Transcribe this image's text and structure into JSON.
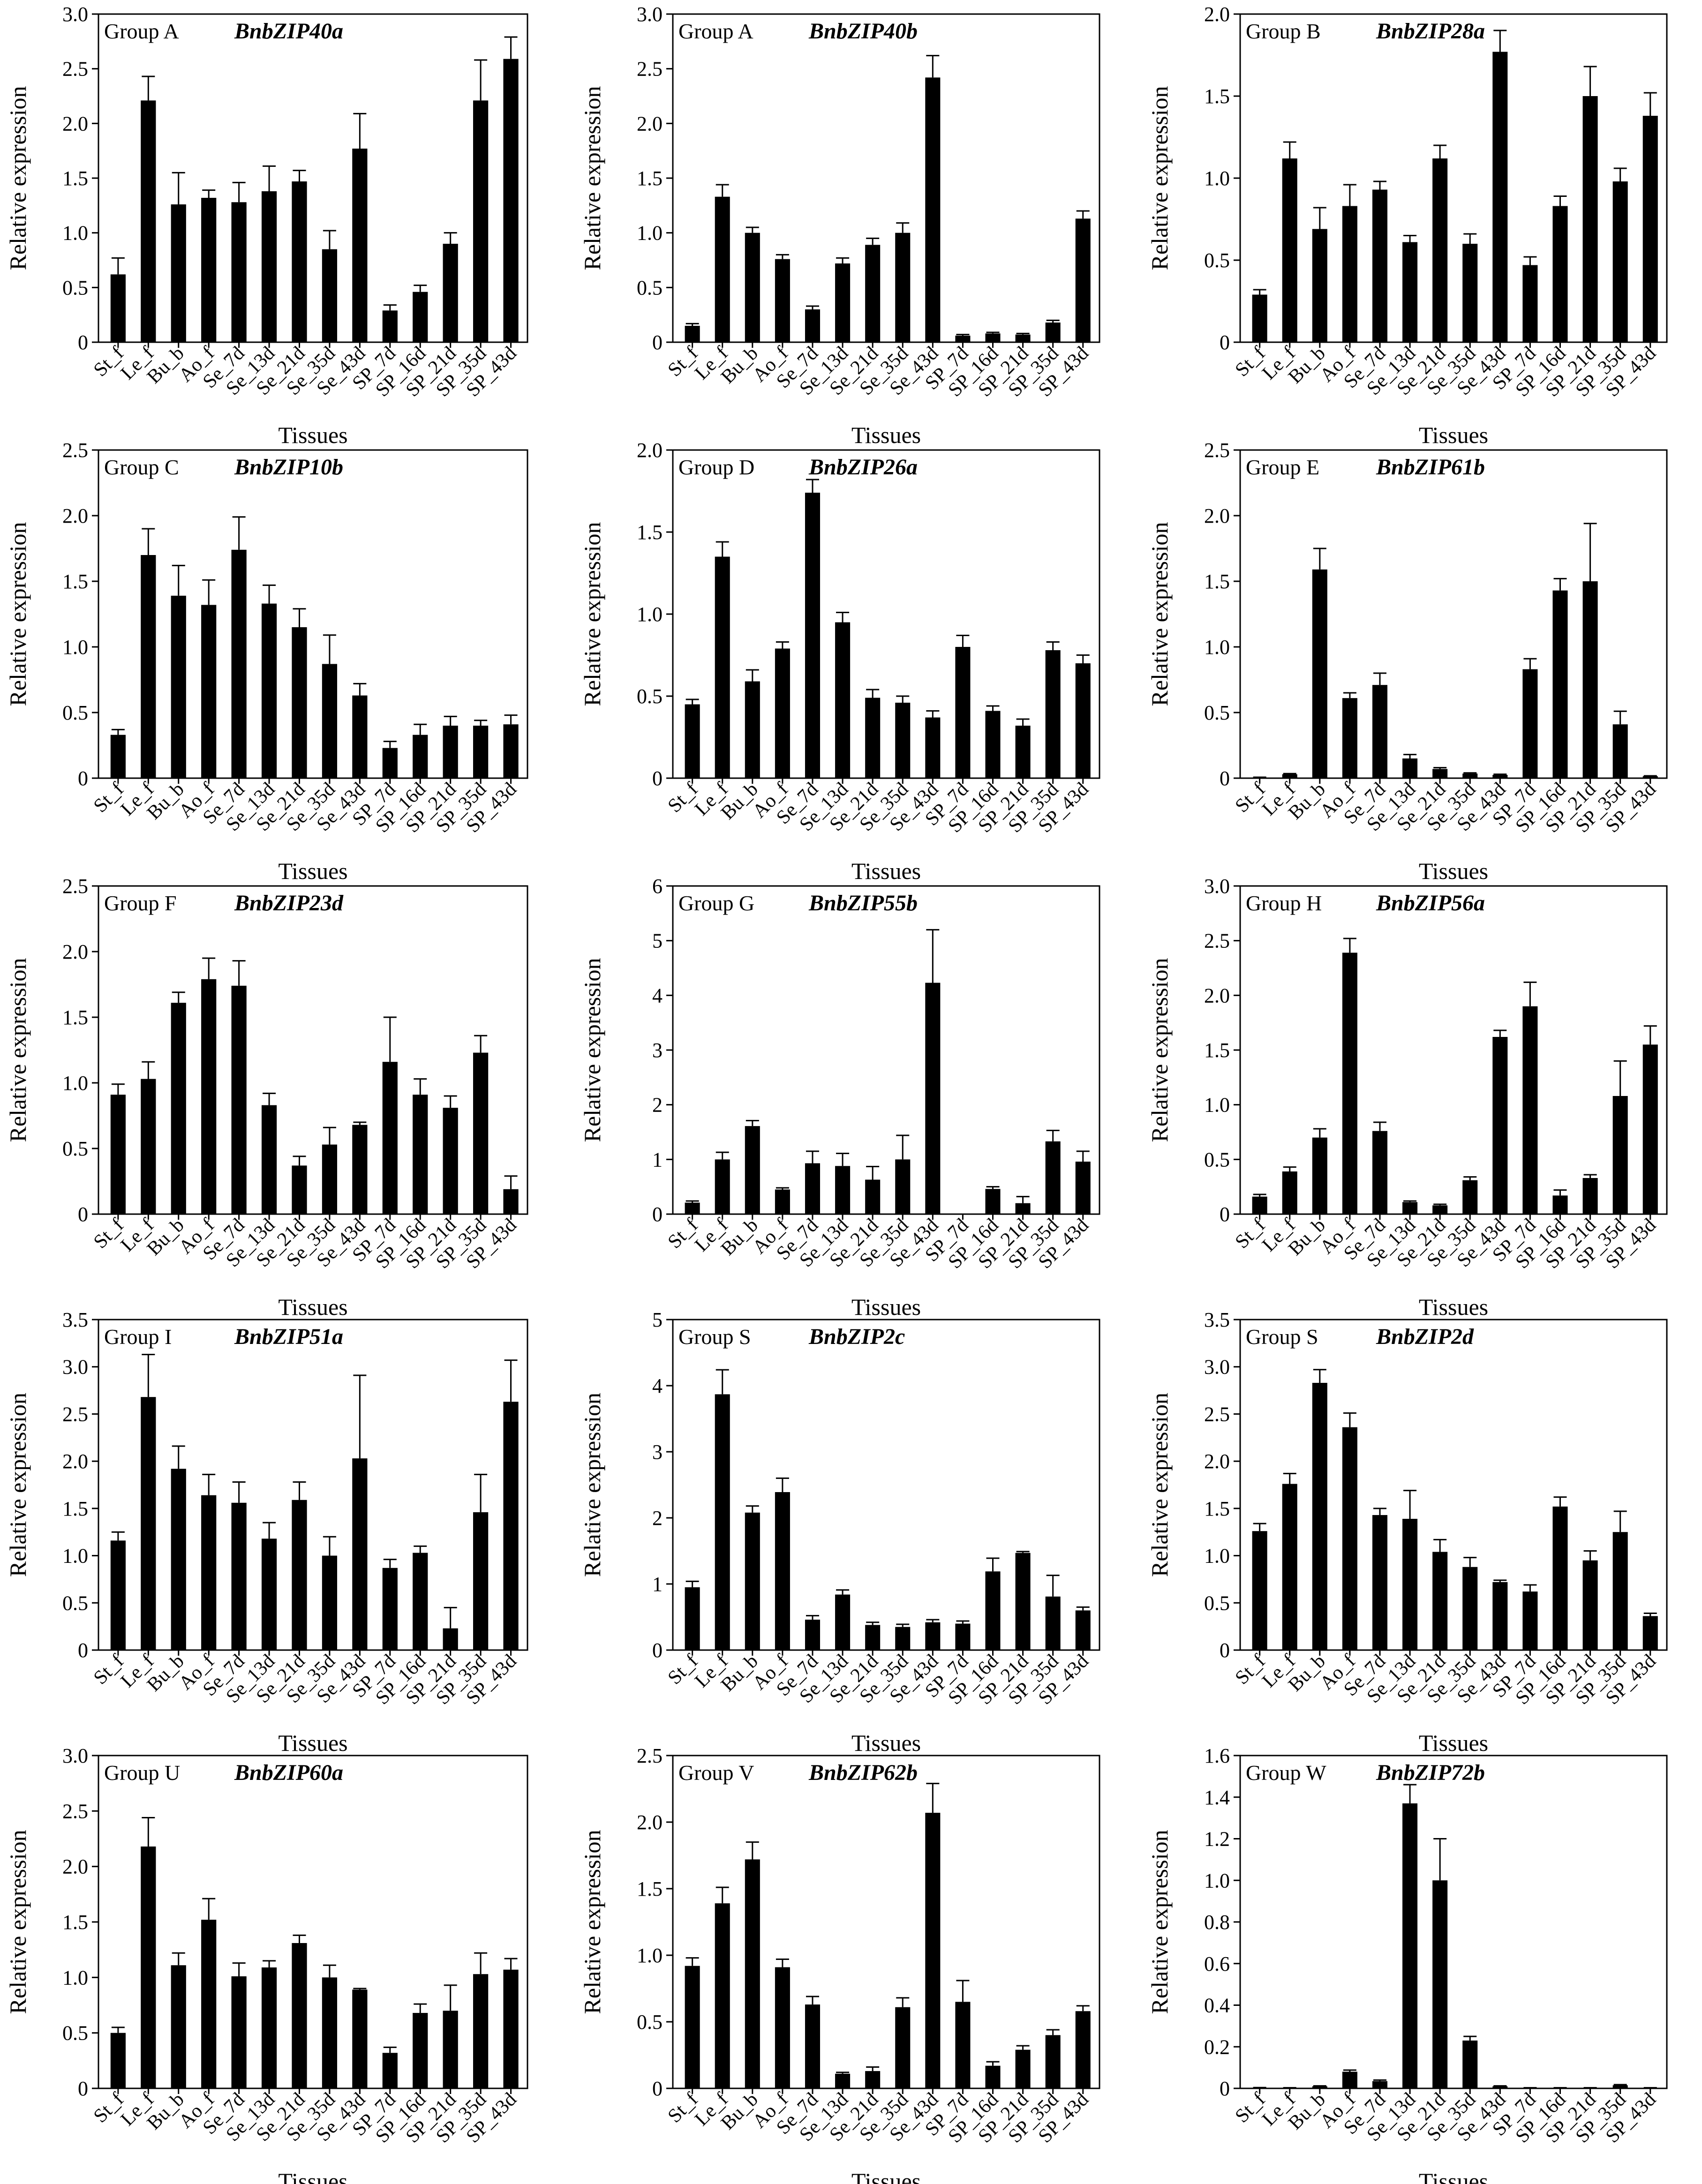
{
  "figure": {
    "xlabel": "Tissues",
    "ylabel": "Relative expression"
  },
  "colors": {
    "bar": "#000000",
    "axis": "#000000",
    "background": "#ffffff"
  },
  "chart_data": [
    {
      "type": "bar",
      "group": "Group A",
      "gene": "BnbZIP40a",
      "categories": [
        "St_f",
        "Le_f",
        "Bu_b",
        "Ao_f",
        "Se_7d",
        "Se_13d",
        "Se_21d",
        "Se_35d",
        "Se_43d",
        "SP_7d",
        "SP_16d",
        "SP_21d",
        "SP_35d",
        "SP_43d"
      ],
      "values": [
        0.62,
        2.21,
        1.26,
        1.32,
        1.28,
        1.38,
        1.47,
        0.85,
        1.77,
        0.29,
        0.46,
        0.9,
        2.21,
        2.59
      ],
      "errors": [
        0.15,
        0.22,
        0.29,
        0.07,
        0.18,
        0.23,
        0.1,
        0.17,
        0.32,
        0.05,
        0.06,
        0.1,
        0.37,
        0.2
      ],
      "ylim": [
        0,
        3
      ],
      "yticks": [
        "0",
        "0.5",
        "1.0",
        "1.5",
        "2.0",
        "2.5",
        "3.0"
      ]
    },
    {
      "type": "bar",
      "group": "Group A",
      "gene": "BnbZIP40b",
      "categories": [
        "St_f",
        "Le_f",
        "Bu_b",
        "Ao_f",
        "Se_7d",
        "Se_13d",
        "Se_21d",
        "Se_35d",
        "Se_43d",
        "SP_7d",
        "SP_16d",
        "SP_21d",
        "SP_35d",
        "SP_43d"
      ],
      "values": [
        0.15,
        1.33,
        1.0,
        0.76,
        0.3,
        0.72,
        0.89,
        1.0,
        2.42,
        0.06,
        0.08,
        0.07,
        0.18,
        1.13
      ],
      "errors": [
        0.02,
        0.11,
        0.05,
        0.04,
        0.03,
        0.05,
        0.06,
        0.09,
        0.2,
        0.01,
        0.01,
        0.01,
        0.02,
        0.07
      ],
      "ylim": [
        0,
        3
      ],
      "yticks": [
        "0",
        "0.5",
        "1.0",
        "1.5",
        "2.0",
        "2.5",
        "3.0"
      ]
    },
    {
      "type": "bar",
      "group": "Group B",
      "gene": "BnbZIP28a",
      "categories": [
        "St_f",
        "Le_f",
        "Bu_b",
        "Ao_f",
        "Se_7d",
        "Se_13d",
        "Se_21d",
        "Se_35d",
        "Se_43d",
        "SP_7d",
        "SP_16d",
        "SP_21d",
        "SP_35d",
        "SP_43d"
      ],
      "values": [
        0.29,
        1.12,
        0.69,
        0.83,
        0.93,
        0.61,
        1.12,
        0.6,
        1.77,
        0.47,
        0.83,
        1.5,
        0.98,
        1.38
      ],
      "errors": [
        0.03,
        0.1,
        0.13,
        0.13,
        0.05,
        0.04,
        0.08,
        0.06,
        0.13,
        0.05,
        0.06,
        0.18,
        0.08,
        0.14
      ],
      "ylim": [
        0,
        2
      ],
      "yticks": [
        "0",
        "0.5",
        "1.0",
        "1.5",
        "2.0"
      ]
    },
    {
      "type": "bar",
      "group": "Group C",
      "gene": "BnbZIP10b",
      "categories": [
        "St_f",
        "Le_f",
        "Bu_b",
        "Ao_f",
        "Se_7d",
        "Se_13d",
        "Se_21d",
        "Se_35d",
        "Se_43d",
        "SP_7d",
        "SP_16d",
        "SP_21d",
        "SP_35d",
        "SP_43d"
      ],
      "values": [
        0.33,
        1.7,
        1.39,
        1.32,
        1.74,
        1.33,
        1.15,
        0.87,
        0.63,
        0.23,
        0.33,
        0.4,
        0.4,
        0.41
      ],
      "errors": [
        0.04,
        0.2,
        0.23,
        0.19,
        0.25,
        0.14,
        0.14,
        0.22,
        0.09,
        0.05,
        0.08,
        0.07,
        0.04,
        0.07
      ],
      "ylim": [
        0,
        2.5
      ],
      "yticks": [
        "0",
        "0.5",
        "1.0",
        "1.5",
        "2.0",
        "2.5"
      ]
    },
    {
      "type": "bar",
      "group": "Group D",
      "gene": "BnbZIP26a",
      "categories": [
        "St_f",
        "Le_f",
        "Bu_b",
        "Ao_f",
        "Se_7d",
        "Se_13d",
        "Se_21d",
        "Se_35d",
        "Se_43d",
        "SP_7d",
        "SP_16d",
        "SP_21d",
        "SP_35d",
        "SP_43d"
      ],
      "values": [
        0.45,
        1.35,
        0.59,
        0.79,
        1.74,
        0.95,
        0.49,
        0.46,
        0.37,
        0.8,
        0.41,
        0.32,
        0.78,
        0.7
      ],
      "errors": [
        0.03,
        0.09,
        0.07,
        0.04,
        0.08,
        0.06,
        0.05,
        0.04,
        0.04,
        0.07,
        0.03,
        0.04,
        0.05,
        0.05
      ],
      "ylim": [
        0,
        2
      ],
      "yticks": [
        "0",
        "0.5",
        "1.0",
        "1.5",
        "2.0"
      ]
    },
    {
      "type": "bar",
      "group": "Group E",
      "gene": "BnbZIP61b",
      "categories": [
        "St_f",
        "Le_f",
        "Bu_b",
        "Ao_f",
        "Se_7d",
        "Se_13d",
        "Se_21d",
        "Se_35d",
        "Se_43d",
        "SP_7d",
        "SP_16d",
        "SP_21d",
        "SP_35d",
        "SP_43d"
      ],
      "values": [
        0.005,
        0.03,
        1.59,
        0.61,
        0.71,
        0.15,
        0.07,
        0.035,
        0.025,
        0.83,
        1.43,
        1.5,
        0.41,
        0.015
      ],
      "errors": [
        0.002,
        0.005,
        0.16,
        0.04,
        0.09,
        0.03,
        0.01,
        0.005,
        0.005,
        0.08,
        0.09,
        0.44,
        0.1,
        0.003
      ],
      "ylim": [
        0,
        2.5
      ],
      "yticks": [
        "0",
        "0.5",
        "1.0",
        "1.5",
        "2.0",
        "2.5"
      ]
    },
    {
      "type": "bar",
      "group": "Group F",
      "gene": "BnbZIP23d",
      "categories": [
        "St_f",
        "Le_f",
        "Bu_b",
        "Ao_f",
        "Se_7d",
        "Se_13d",
        "Se_21d",
        "Se_35d",
        "Se_43d",
        "SP_7d",
        "SP_16d",
        "SP_21d",
        "SP_35d",
        "SP_43d"
      ],
      "values": [
        0.91,
        1.03,
        1.61,
        1.79,
        1.74,
        0.83,
        0.37,
        0.53,
        0.68,
        1.16,
        0.91,
        0.81,
        1.23,
        0.19
      ],
      "errors": [
        0.08,
        0.13,
        0.08,
        0.16,
        0.19,
        0.09,
        0.07,
        0.13,
        0.02,
        0.34,
        0.12,
        0.09,
        0.13,
        0.1
      ],
      "ylim": [
        0,
        2.5
      ],
      "yticks": [
        "0",
        "0.5",
        "1.0",
        "1.5",
        "2.0",
        "2.5"
      ]
    },
    {
      "type": "bar",
      "group": "Group G",
      "gene": "BnbZIP55b",
      "categories": [
        "St_f",
        "Le_f",
        "Bu_b",
        "Ao_f",
        "Se_7d",
        "Se_13d",
        "Se_21d",
        "Se_35d",
        "Se_43d",
        "SP_7d",
        "SP_16d",
        "SP_21d",
        "SP_35d",
        "SP_43d"
      ],
      "values": [
        0.21,
        1.0,
        1.61,
        0.45,
        0.93,
        0.88,
        0.63,
        1.0,
        4.23,
        0.0,
        0.46,
        0.2,
        1.33,
        0.96
      ],
      "errors": [
        0.03,
        0.13,
        0.1,
        0.03,
        0.22,
        0.23,
        0.24,
        0.44,
        0.97,
        0.0,
        0.04,
        0.12,
        0.2,
        0.19
      ],
      "ylim": [
        0,
        6
      ],
      "yticks": [
        "0",
        "1",
        "2",
        "3",
        "4",
        "5",
        "6"
      ]
    },
    {
      "type": "bar",
      "group": "Group H",
      "gene": "BnbZIP56a",
      "categories": [
        "St_f",
        "Le_f",
        "Bu_b",
        "Ao_f",
        "Se_7d",
        "Se_13d",
        "Se_21d",
        "Se_35d",
        "Se_43d",
        "SP_7d",
        "SP_16d",
        "SP_21d",
        "SP_35d",
        "SP_43d"
      ],
      "values": [
        0.16,
        0.39,
        0.7,
        2.39,
        0.76,
        0.11,
        0.08,
        0.31,
        1.62,
        1.9,
        0.17,
        0.33,
        1.08,
        1.55
      ],
      "errors": [
        0.02,
        0.04,
        0.08,
        0.13,
        0.08,
        0.01,
        0.01,
        0.03,
        0.06,
        0.22,
        0.05,
        0.03,
        0.32,
        0.17
      ],
      "ylim": [
        0,
        3
      ],
      "yticks": [
        "0",
        "0.5",
        "1.0",
        "1.5",
        "2.0",
        "2.5",
        "3.0"
      ]
    },
    {
      "type": "bar",
      "group": "Group I",
      "gene": "BnbZIP51a",
      "categories": [
        "St_f",
        "Le_f",
        "Bu_b",
        "Ao_f",
        "Se_7d",
        "Se_13d",
        "Se_21d",
        "Se_35d",
        "Se_43d",
        "SP_7d",
        "SP_16d",
        "SP_21d",
        "SP_35d",
        "SP_43d"
      ],
      "values": [
        1.16,
        2.68,
        1.92,
        1.64,
        1.56,
        1.18,
        1.59,
        1.0,
        2.03,
        0.87,
        1.03,
        0.23,
        1.46,
        2.63
      ],
      "errors": [
        0.09,
        0.45,
        0.24,
        0.22,
        0.22,
        0.17,
        0.19,
        0.2,
        0.88,
        0.09,
        0.07,
        0.22,
        0.4,
        0.44
      ],
      "ylim": [
        0,
        3.5
      ],
      "yticks": [
        "0",
        "0.5",
        "1.0",
        "1.5",
        "2.0",
        "2.5",
        "3.0",
        "3.5"
      ]
    },
    {
      "type": "bar",
      "group": "Group S",
      "gene": "BnbZIP2c",
      "categories": [
        "St_f",
        "Le_f",
        "Bu_b",
        "Ao_f",
        "Se_7d",
        "Se_13d",
        "Se_21d",
        "Se_35d",
        "Se_43d",
        "SP_7d",
        "SP_16d",
        "SP_21d",
        "SP_35d",
        "SP_43d"
      ],
      "values": [
        0.95,
        3.87,
        2.08,
        2.39,
        0.46,
        0.84,
        0.38,
        0.35,
        0.42,
        0.4,
        1.19,
        1.47,
        0.81,
        0.6
      ],
      "errors": [
        0.09,
        0.37,
        0.1,
        0.21,
        0.06,
        0.07,
        0.04,
        0.04,
        0.04,
        0.04,
        0.2,
        0.02,
        0.32,
        0.05
      ],
      "ylim": [
        0,
        5
      ],
      "yticks": [
        "0",
        "1",
        "2",
        "3",
        "4",
        "5"
      ]
    },
    {
      "type": "bar",
      "group": "Group S",
      "gene": "BnbZIP2d",
      "categories": [
        "St_f",
        "Le_f",
        "Bu_b",
        "Ao_f",
        "Se_7d",
        "Se_13d",
        "Se_21d",
        "Se_35d",
        "Se_43d",
        "SP_7d",
        "SP_16d",
        "SP_21d",
        "SP_35d",
        "SP_43d"
      ],
      "values": [
        1.26,
        1.76,
        2.83,
        2.36,
        1.43,
        1.39,
        1.04,
        0.88,
        0.72,
        0.62,
        1.52,
        0.95,
        1.25,
        0.36
      ],
      "errors": [
        0.08,
        0.11,
        0.14,
        0.15,
        0.07,
        0.3,
        0.13,
        0.1,
        0.02,
        0.07,
        0.1,
        0.1,
        0.22,
        0.03
      ],
      "ylim": [
        0,
        3.5
      ],
      "yticks": [
        "0",
        "0.5",
        "1.0",
        "1.5",
        "2.0",
        "2.5",
        "3.0",
        "3.5"
      ]
    },
    {
      "type": "bar",
      "group": "Group U",
      "gene": "BnbZIP60a",
      "categories": [
        "St_f",
        "Le_f",
        "Bu_b",
        "Ao_f",
        "Se_7d",
        "Se_13d",
        "Se_21d",
        "Se_35d",
        "Se_43d",
        "SP_7d",
        "SP_16d",
        "SP_21d",
        "SP_35d",
        "SP_43d"
      ],
      "values": [
        0.5,
        2.18,
        1.11,
        1.52,
        1.01,
        1.09,
        1.31,
        1.0,
        0.89,
        0.32,
        0.68,
        0.7,
        1.03,
        1.07
      ],
      "errors": [
        0.05,
        0.26,
        0.11,
        0.19,
        0.12,
        0.06,
        0.07,
        0.11,
        0.01,
        0.05,
        0.08,
        0.23,
        0.19,
        0.1
      ],
      "ylim": [
        0,
        3
      ],
      "yticks": [
        "0",
        "0.5",
        "1.0",
        "1.5",
        "2.0",
        "2.5",
        "3.0"
      ]
    },
    {
      "type": "bar",
      "group": "Group V",
      "gene": "BnbZIP62b",
      "categories": [
        "St_f",
        "Le_f",
        "Bu_b",
        "Ao_f",
        "Se_7d",
        "Se_13d",
        "Se_21d",
        "Se_35d",
        "Se_43d",
        "SP_7d",
        "SP_16d",
        "SP_21d",
        "SP_35d",
        "SP_43d"
      ],
      "values": [
        0.92,
        1.39,
        1.72,
        0.91,
        0.63,
        0.11,
        0.13,
        0.61,
        2.07,
        0.65,
        0.17,
        0.29,
        0.4,
        0.58
      ],
      "errors": [
        0.06,
        0.12,
        0.13,
        0.06,
        0.06,
        0.01,
        0.03,
        0.07,
        0.22,
        0.16,
        0.03,
        0.03,
        0.04,
        0.04
      ],
      "ylim": [
        0,
        2.5
      ],
      "yticks": [
        "0",
        "0.5",
        "1.0",
        "1.5",
        "2.0",
        "2.5"
      ]
    },
    {
      "type": "bar",
      "group": "Group W",
      "gene": "BnbZIP72b",
      "categories": [
        "St_f",
        "Le_f",
        "Bu_b",
        "Ao_f",
        "Se_7d",
        "Se_13d",
        "Se_21d",
        "Se_35d",
        "Se_43d",
        "SP_7d",
        "SP_16d",
        "SP_21d",
        "SP_35d",
        "SP_43d"
      ],
      "values": [
        0.003,
        0.002,
        0.01,
        0.08,
        0.035,
        1.37,
        1.0,
        0.23,
        0.01,
        0.002,
        0.002,
        0.002,
        0.015,
        0.002
      ],
      "errors": [
        0.001,
        0.001,
        0.002,
        0.008,
        0.005,
        0.09,
        0.2,
        0.02,
        0.002,
        0.001,
        0.001,
        0.001,
        0.003,
        0.001
      ],
      "ylim": [
        0,
        1.6
      ],
      "yticks": [
        "0",
        "0.2",
        "0.4",
        "0.6",
        "0.8",
        "1.0",
        "1.2",
        "1.4",
        "1.6"
      ]
    }
  ]
}
